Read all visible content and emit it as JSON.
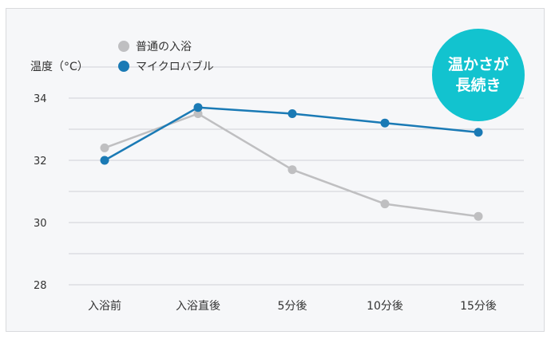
{
  "colors": {
    "normal": "#bfbfc1",
    "micro": "#1a7ab5",
    "badge": "#12c3cf",
    "grid": "#d0d2d6"
  },
  "badge": {
    "line1": "温かさが",
    "line2": "長続き"
  },
  "chart_data": {
    "type": "line",
    "ylabel": "温度（°C）",
    "categories": [
      "入浴前",
      "入浴直後",
      "5分後",
      "10分後",
      "15分後"
    ],
    "yticks": [
      28,
      30,
      32,
      34
    ],
    "ylim": [
      28,
      35.5
    ],
    "grid": true,
    "legend_position": "top-left",
    "series": [
      {
        "name": "普通の入浴",
        "color": "#bfbfc1",
        "values": [
          32.4,
          33.5,
          31.7,
          30.6,
          30.2
        ]
      },
      {
        "name": "マイクロバブル",
        "color": "#1a7ab5",
        "values": [
          32.0,
          33.7,
          33.5,
          33.2,
          32.9
        ]
      }
    ]
  }
}
